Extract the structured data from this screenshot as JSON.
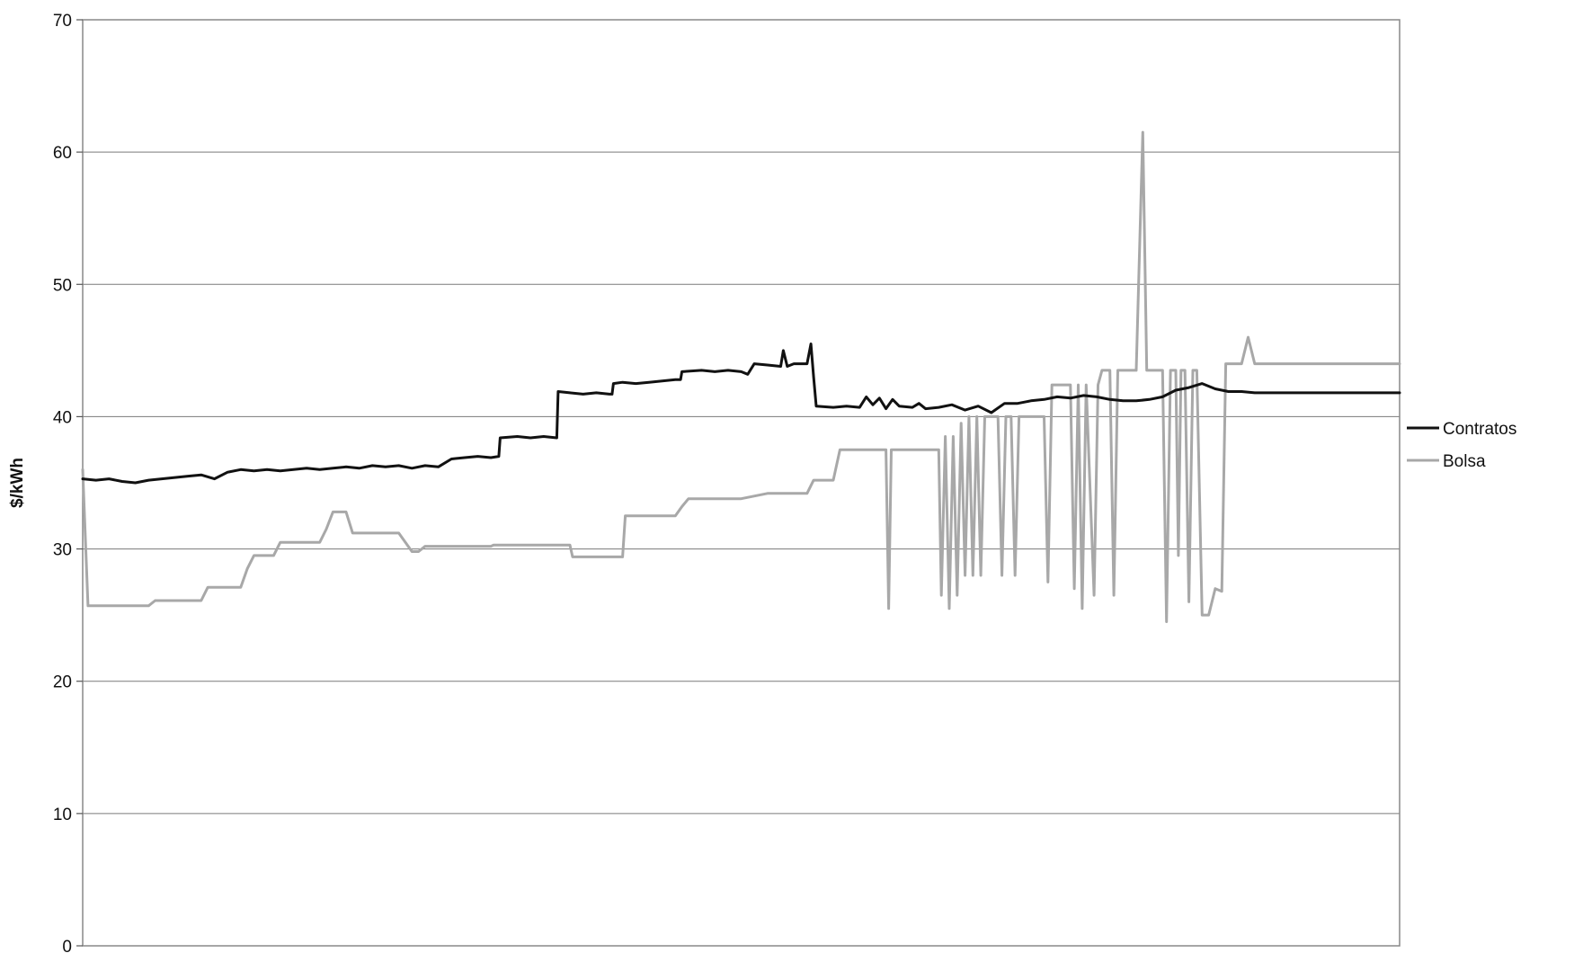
{
  "chart_data": {
    "type": "line",
    "title": "",
    "xlabel": "",
    "ylabel": "$/kWh",
    "ylim": [
      0,
      70
    ],
    "yticks": [
      0,
      10,
      20,
      30,
      40,
      50,
      60,
      70
    ],
    "grid": true,
    "legend_position": "right",
    "x_index_range": [
      0,
      100
    ],
    "series": [
      {
        "name": "Contratos",
        "color": "#111111",
        "points": [
          [
            0,
            35.3
          ],
          [
            1,
            35.2
          ],
          [
            2,
            35.3
          ],
          [
            3,
            35.1
          ],
          [
            4,
            35.0
          ],
          [
            5,
            35.2
          ],
          [
            6,
            35.3
          ],
          [
            7,
            35.4
          ],
          [
            8,
            35.5
          ],
          [
            9,
            35.6
          ],
          [
            10,
            35.3
          ],
          [
            11,
            35.8
          ],
          [
            12,
            36.0
          ],
          [
            13,
            35.9
          ],
          [
            14,
            36.0
          ],
          [
            15,
            35.9
          ],
          [
            16,
            36.0
          ],
          [
            17,
            36.1
          ],
          [
            18,
            36.0
          ],
          [
            19,
            36.1
          ],
          [
            20,
            36.2
          ],
          [
            21,
            36.1
          ],
          [
            22,
            36.3
          ],
          [
            23,
            36.2
          ],
          [
            24,
            36.3
          ],
          [
            25,
            36.1
          ],
          [
            26,
            36.3
          ],
          [
            27,
            36.2
          ],
          [
            28,
            36.8
          ],
          [
            29,
            36.9
          ],
          [
            30,
            37.0
          ],
          [
            31,
            36.9
          ],
          [
            31.6,
            37.0
          ],
          [
            31.7,
            38.4
          ],
          [
            33,
            38.5
          ],
          [
            34,
            38.4
          ],
          [
            35,
            38.5
          ],
          [
            36.0,
            38.4
          ],
          [
            36.1,
            41.9
          ],
          [
            37,
            41.8
          ],
          [
            38,
            41.7
          ],
          [
            39,
            41.8
          ],
          [
            40,
            41.7
          ],
          [
            40.2,
            41.7
          ],
          [
            40.3,
            42.5
          ],
          [
            41,
            42.6
          ],
          [
            42,
            42.5
          ],
          [
            43,
            42.6
          ],
          [
            44,
            42.7
          ],
          [
            45,
            42.8
          ],
          [
            45.4,
            42.8
          ],
          [
            45.5,
            43.4
          ],
          [
            47,
            43.5
          ],
          [
            48,
            43.4
          ],
          [
            49,
            43.5
          ],
          [
            50,
            43.4
          ],
          [
            50.5,
            43.2
          ],
          [
            51,
            44.0
          ],
          [
            52,
            43.9
          ],
          [
            53,
            43.8
          ],
          [
            53.2,
            45.0
          ],
          [
            53.5,
            43.8
          ],
          [
            54,
            44.0
          ],
          [
            55,
            44.0
          ],
          [
            55.3,
            45.5
          ],
          [
            55.5,
            43.0
          ],
          [
            55.7,
            40.8
          ],
          [
            57,
            40.7
          ],
          [
            58,
            40.8
          ],
          [
            59,
            40.7
          ],
          [
            59.5,
            41.5
          ],
          [
            60,
            40.9
          ],
          [
            60.5,
            41.4
          ],
          [
            61,
            40.6
          ],
          [
            61.5,
            41.3
          ],
          [
            62,
            40.8
          ],
          [
            63,
            40.7
          ],
          [
            63.5,
            41.0
          ],
          [
            64,
            40.6
          ],
          [
            65,
            40.7
          ],
          [
            66,
            40.9
          ],
          [
            67,
            40.5
          ],
          [
            68,
            40.8
          ],
          [
            69,
            40.3
          ],
          [
            70,
            41.0
          ],
          [
            71,
            41.0
          ],
          [
            72,
            41.2
          ],
          [
            73,
            41.3
          ],
          [
            74,
            41.5
          ],
          [
            75,
            41.4
          ],
          [
            76,
            41.6
          ],
          [
            77,
            41.5
          ],
          [
            78,
            41.3
          ],
          [
            79,
            41.2
          ],
          [
            80,
            41.2
          ],
          [
            81,
            41.3
          ],
          [
            82,
            41.5
          ],
          [
            83,
            42.0
          ],
          [
            84,
            42.2
          ],
          [
            85,
            42.5
          ],
          [
            86,
            42.1
          ],
          [
            87,
            41.9
          ],
          [
            88,
            41.9
          ],
          [
            89,
            41.8
          ],
          [
            100,
            41.8
          ]
        ]
      },
      {
        "name": "Bolsa",
        "color": "#a8a8a8",
        "points": [
          [
            0,
            36.0
          ],
          [
            0.4,
            25.7
          ],
          [
            3,
            25.7
          ],
          [
            5,
            25.7
          ],
          [
            5.5,
            26.1
          ],
          [
            9,
            26.1
          ],
          [
            9.5,
            27.1
          ],
          [
            12,
            27.1
          ],
          [
            12.5,
            28.5
          ],
          [
            13,
            29.5
          ],
          [
            14.5,
            29.5
          ],
          [
            15,
            30.5
          ],
          [
            18,
            30.5
          ],
          [
            18.5,
            31.5
          ],
          [
            19,
            32.8
          ],
          [
            20,
            32.8
          ],
          [
            20.5,
            31.2
          ],
          [
            24,
            31.2
          ],
          [
            25,
            29.8
          ],
          [
            25.5,
            29.8
          ],
          [
            26,
            30.2
          ],
          [
            31,
            30.2
          ],
          [
            31.2,
            30.3
          ],
          [
            37,
            30.3
          ],
          [
            37.2,
            29.4
          ],
          [
            41,
            29.4
          ],
          [
            41.2,
            32.5
          ],
          [
            45,
            32.5
          ],
          [
            45.5,
            33.2
          ],
          [
            46,
            33.8
          ],
          [
            50,
            33.8
          ],
          [
            52,
            34.2
          ],
          [
            55,
            34.2
          ],
          [
            55.5,
            35.2
          ],
          [
            57,
            35.2
          ],
          [
            57.5,
            37.5
          ],
          [
            61,
            37.5
          ],
          [
            61.2,
            25.5
          ],
          [
            61.4,
            37.5
          ],
          [
            65,
            37.5
          ],
          [
            65.2,
            26.5
          ],
          [
            65.5,
            38.5
          ],
          [
            65.8,
            25.5
          ],
          [
            66.1,
            38.5
          ],
          [
            66.4,
            26.5
          ],
          [
            66.7,
            39.5
          ],
          [
            67,
            28.0
          ],
          [
            67.3,
            40.0
          ],
          [
            67.6,
            28.0
          ],
          [
            67.9,
            40.0
          ],
          [
            68.2,
            28.0
          ],
          [
            68.5,
            40.0
          ],
          [
            69.5,
            40.0
          ],
          [
            69.8,
            28.0
          ],
          [
            70.1,
            40.0
          ],
          [
            70.5,
            40.0
          ],
          [
            70.8,
            28.0
          ],
          [
            71.1,
            40.0
          ],
          [
            73,
            40.0
          ],
          [
            73.3,
            27.5
          ],
          [
            73.6,
            42.4
          ],
          [
            75,
            42.4
          ],
          [
            75.3,
            27.0
          ],
          [
            75.6,
            42.4
          ],
          [
            75.9,
            25.5
          ],
          [
            76.2,
            42.4
          ],
          [
            76.8,
            26.5
          ],
          [
            77.1,
            42.4
          ],
          [
            77.4,
            43.5
          ],
          [
            78,
            43.5
          ],
          [
            78.3,
            26.5
          ],
          [
            78.6,
            43.5
          ],
          [
            80,
            43.5
          ],
          [
            80.5,
            61.5
          ],
          [
            80.8,
            43.5
          ],
          [
            82,
            43.5
          ],
          [
            82.3,
            24.5
          ],
          [
            82.6,
            43.5
          ],
          [
            83,
            43.5
          ],
          [
            83.2,
            29.5
          ],
          [
            83.4,
            43.5
          ],
          [
            83.7,
            43.5
          ],
          [
            84,
            26.0
          ],
          [
            84.3,
            43.5
          ],
          [
            84.6,
            43.5
          ],
          [
            85,
            25.0
          ],
          [
            85.5,
            25.0
          ],
          [
            86,
            27.0
          ],
          [
            86.5,
            26.8
          ],
          [
            86.8,
            44.0
          ],
          [
            88,
            44.0
          ],
          [
            88.5,
            46.0
          ],
          [
            89,
            44.0
          ],
          [
            100,
            44.0
          ]
        ]
      }
    ]
  }
}
